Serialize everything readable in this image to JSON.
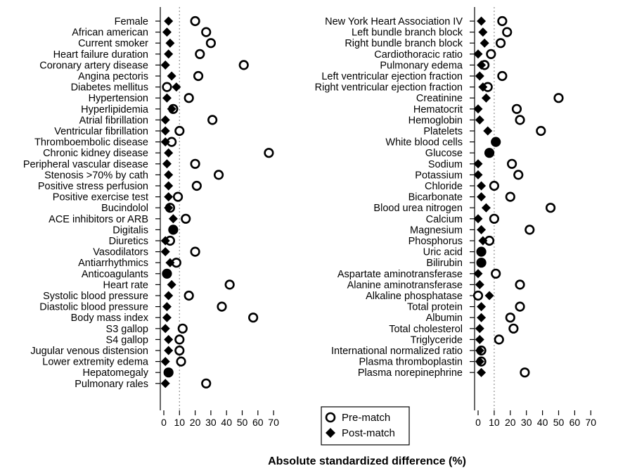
{
  "chart_data": [
    {
      "type": "scatter",
      "panel": "left",
      "xlim": [
        0,
        70
      ],
      "xticks": [
        0,
        10,
        20,
        30,
        40,
        50,
        60,
        70
      ],
      "reference_line": 10,
      "categories": [
        "Female",
        "African american",
        "Current smoker",
        "Heart failure duration",
        "Coronary artery disease",
        "Angina pectoris",
        "Diabetes mellitus",
        "Hypertension",
        "Hyperlipidemia",
        "Atrial fibrillation",
        "Ventricular fibrillation",
        "Thromboembolic disease",
        "Chronic kidney disease",
        "Peripheral vascular disease",
        "Stenosis >70% by cath",
        "Positive stress perfusion",
        "Positive exercise test",
        "Bucindolol",
        "ACE inhibitors or ARB",
        "Digitalis",
        "Diuretics",
        "Vasodilators",
        "Antiarrhythmics",
        "Anticoagulants",
        "Heart rate",
        "Systolic blood pressure",
        "Diastolic blood pressure",
        "Body mass index",
        "S3 gallop",
        "S4 gallop",
        "Jugular venous distension",
        "Lower extremity edema",
        "Hepatomegaly",
        "Pulmonary rales"
      ],
      "series": [
        {
          "name": "Pre-match",
          "marker": "hollow-circle",
          "values": [
            20,
            27,
            30,
            23,
            51,
            22,
            2,
            16,
            6,
            31,
            10,
            5,
            67,
            20,
            35,
            21,
            9,
            4,
            14,
            6,
            4,
            20,
            8,
            2,
            42,
            16,
            37,
            57,
            12,
            10,
            10,
            11,
            3,
            27
          ]
        },
        {
          "name": "Post-match",
          "marker": "filled-diamond",
          "values": [
            3,
            2,
            4,
            3,
            1,
            5,
            8,
            2,
            5,
            1,
            1,
            1,
            3,
            2,
            3,
            3,
            3,
            3,
            6,
            6,
            1,
            1,
            4,
            2,
            5,
            3,
            2,
            2,
            1,
            3,
            3,
            1,
            3,
            1
          ]
        }
      ]
    },
    {
      "type": "scatter",
      "panel": "right",
      "xlim": [
        0,
        70
      ],
      "xticks": [
        0,
        10,
        20,
        30,
        40,
        50,
        60,
        70
      ],
      "reference_line": 10,
      "categories": [
        "New York Heart Association IV",
        "Left bundle branch block",
        "Right bundle branch block",
        "Cardiothoracic ratio",
        "Pulmonary edema",
        "Left ventricular ejection fraction",
        "Right ventricular ejection fraction",
        "Creatinine",
        "Hematocrit",
        "Hemoglobin",
        "Platelets",
        "White blood cells",
        "Glucose",
        "Sodium",
        "Potassium",
        "Chloride",
        "Bicarbonate",
        "Blood urea nitrogen",
        "Calcium",
        "Magnesium",
        "Phosphorus",
        "Uric acid",
        "Bilirubin",
        "Aspartate aminotransferase",
        "Alanine aminotransferase",
        "Alkaline phosphatase",
        "Total protein",
        "Albumin",
        "Total cholesterol",
        "Triglyceride",
        "International normalized ratio",
        "Plasma thromboplastin",
        "Plasma norepinephrine"
      ],
      "series": [
        {
          "name": "Pre-match",
          "marker": "hollow-circle",
          "values": [
            15,
            18,
            14,
            8,
            4,
            15,
            6,
            50,
            24,
            26,
            39,
            11,
            7,
            21,
            25,
            10,
            20,
            45,
            10,
            32,
            7,
            2,
            2,
            11,
            26,
            0,
            26,
            20,
            22,
            13,
            2,
            2,
            29
          ]
        },
        {
          "name": "Post-match",
          "marker": "filled-diamond",
          "values": [
            2,
            3,
            4,
            0,
            2,
            1,
            3,
            5,
            0,
            1,
            6,
            11,
            7,
            0,
            0,
            2,
            2,
            5,
            0,
            2,
            3,
            2,
            2,
            0,
            1,
            7,
            2,
            2,
            1,
            1,
            1,
            1,
            2
          ]
        }
      ]
    }
  ],
  "legend": {
    "pre_label": "Pre-match",
    "post_label": "Post-match"
  },
  "xlabel": "Absolute standardized difference (%)",
  "colors": {
    "marker": "#000000",
    "reference_line": "#9a9a9a"
  }
}
